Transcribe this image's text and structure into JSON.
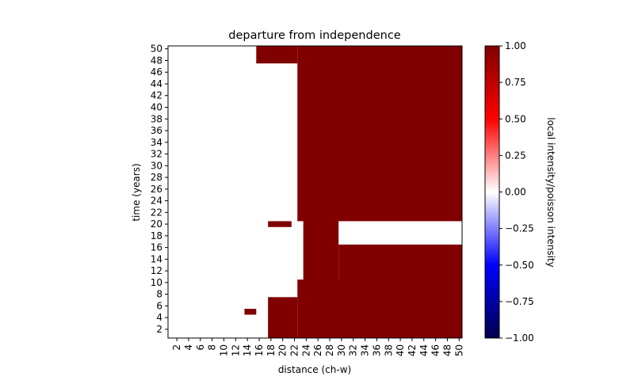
{
  "chart_data": {
    "type": "heatmap",
    "title": "departure from independence",
    "xlabel": "distance (ch-w)",
    "ylabel": "time (years)",
    "x_range": [
      1,
      50
    ],
    "y_range": [
      1,
      50
    ],
    "x_tick_labels": [
      "2",
      "4",
      "6",
      "8",
      "10",
      "12",
      "14",
      "16",
      "18",
      "20",
      "22",
      "24",
      "26",
      "28",
      "30",
      "32",
      "34",
      "36",
      "38",
      "40",
      "42",
      "44",
      "46",
      "48",
      "50"
    ],
    "y_tick_labels": [
      "2",
      "4",
      "6",
      "8",
      "10",
      "12",
      "14",
      "16",
      "18",
      "20",
      "22",
      "24",
      "26",
      "28",
      "30",
      "32",
      "34",
      "36",
      "38",
      "40",
      "42",
      "44",
      "46",
      "48",
      "50"
    ],
    "colorbar": {
      "label": "local intensity/poisson intensity",
      "vmin": -1.0,
      "vmax": 1.0,
      "tick_labels": [
        "1.00",
        "0.75",
        "0.50",
        "0.25",
        "0.00",
        "−0.25",
        "−0.50",
        "−0.75",
        "−1.00"
      ],
      "tick_values": [
        1.0,
        0.75,
        0.5,
        0.25,
        0.0,
        -0.25,
        -0.5,
        -0.75,
        -1.0
      ],
      "colormap": "seismic"
    },
    "cell_values": [
      0.0,
      1.0
    ],
    "high_value_regions": [
      {
        "x": [
          23,
          50
        ],
        "y": [
          1,
          10
        ]
      },
      {
        "x": [
          18,
          22
        ],
        "y": [
          1,
          7
        ]
      },
      {
        "x": [
          14,
          15
        ],
        "y": [
          5,
          5
        ]
      },
      {
        "x": [
          24,
          29
        ],
        "y": [
          9,
          22
        ]
      },
      {
        "x": [
          30,
          50
        ],
        "y": [
          9,
          16
        ]
      },
      {
        "x": [
          23,
          50
        ],
        "y": [
          21,
          50
        ]
      },
      {
        "x": [
          16,
          22
        ],
        "y": [
          48,
          50
        ]
      },
      {
        "x": [
          18,
          21
        ],
        "y": [
          20,
          20
        ]
      }
    ]
  }
}
